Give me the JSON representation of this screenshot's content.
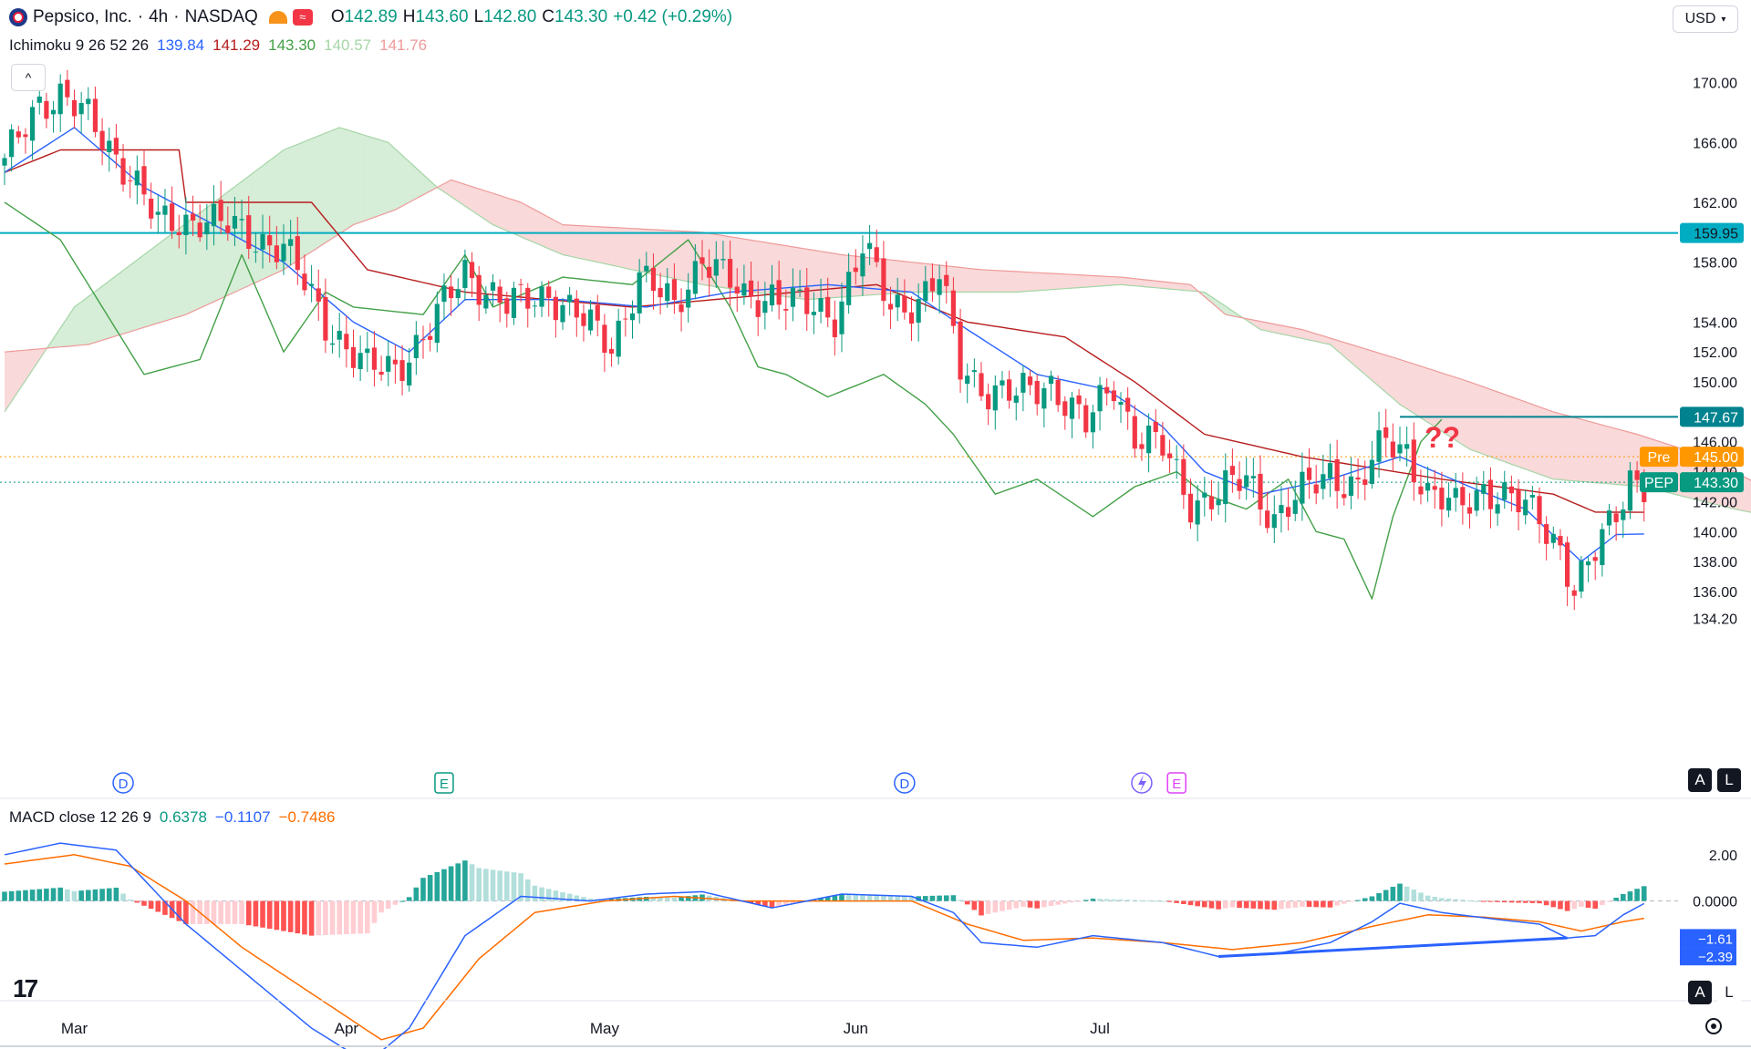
{
  "header": {
    "symbol": "Pepsico, Inc.",
    "interval": "4h",
    "exchange": "NASDAQ",
    "open_label": "O",
    "open": "142.89",
    "high_label": "H",
    "high": "143.60",
    "low_label": "L",
    "low": "142.80",
    "close_label": "C",
    "close": "143.30",
    "change": "+0.42 (+0.29%)",
    "currency": "USD"
  },
  "ichimoku": {
    "label": "Ichimoku 9 26 52 26",
    "values": [
      "139.84",
      "141.29",
      "143.30",
      "140.57",
      "141.76"
    ]
  },
  "macd": {
    "label": "MACD close 12 26 9",
    "values": [
      "0.6378",
      "−0.1107",
      "−0.7486"
    ],
    "axis_ticks": [
      "2.00",
      "0.0000"
    ],
    "tags": [
      "−1.61",
      "−2.39"
    ]
  },
  "annotation": "??",
  "price_axis": {
    "ticks": [
      "170.00",
      "166.00",
      "162.00",
      "158.00",
      "154.00",
      "152.00",
      "150.00",
      "146.00",
      "144.00",
      "142.00",
      "140.00",
      "138.00",
      "136.00",
      "134.20"
    ],
    "tags": {
      "resistance": "159.95",
      "level": "147.67",
      "pre_label": "Pre",
      "pre_value": "145.00",
      "ticker_label": "PEP",
      "last_value": "143.30"
    }
  },
  "time_axis": {
    "labels": [
      "Mar",
      "Apr",
      "May",
      "Jun",
      "Jul"
    ]
  },
  "event_markers": [
    "D",
    "E",
    "D",
    "E"
  ],
  "scale_buttons": [
    "A",
    "L"
  ],
  "colors": {
    "up": "#089981",
    "down": "#f23645",
    "tenkan": "#2962ff",
    "kijun": "#b71c1c",
    "lagging": "#43a047",
    "cloud_bull": "#a5d6a7",
    "cloud_bear": "#ef9a9a",
    "macd_line": "#2962ff",
    "signal_line": "#ff6d00",
    "hline": "#00acc1"
  },
  "chart_data": {
    "type": "candlestick",
    "title": "Pepsico, Inc. · 4h · NASDAQ",
    "x_range": [
      "Feb 24",
      "Jul 3"
    ],
    "ylim": [
      133.5,
      171.5
    ],
    "horizontal_lines": [
      {
        "value": 159.95,
        "color": "#00acc1"
      },
      {
        "value": 147.67,
        "color": "#00838f",
        "starts_at": "mid-Jun"
      },
      {
        "value": 145.0,
        "color": "#ff9800",
        "style": "dotted"
      },
      {
        "value": 143.3,
        "color": "#089981",
        "style": "dotted"
      }
    ],
    "waypoints_close": [
      {
        "x": 0,
        "v": 164.5
      },
      {
        "x": 5,
        "v": 168.8
      },
      {
        "x": 8,
        "v": 169.2
      },
      {
        "x": 12,
        "v": 167.5
      },
      {
        "x": 18,
        "v": 164.0
      },
      {
        "x": 22,
        "v": 160.5
      },
      {
        "x": 28,
        "v": 161.0
      },
      {
        "x": 34,
        "v": 160.0
      },
      {
        "x": 40,
        "v": 159.0
      },
      {
        "x": 46,
        "v": 154.0
      },
      {
        "x": 52,
        "v": 150.8
      },
      {
        "x": 56,
        "v": 151.0
      },
      {
        "x": 61,
        "v": 153.5
      },
      {
        "x": 66,
        "v": 157.5
      },
      {
        "x": 72,
        "v": 155.0
      },
      {
        "x": 78,
        "v": 156.0
      },
      {
        "x": 83,
        "v": 154.0
      },
      {
        "x": 87,
        "v": 152.5
      },
      {
        "x": 91,
        "v": 157.0
      },
      {
        "x": 96,
        "v": 155.0
      },
      {
        "x": 100,
        "v": 158.5
      },
      {
        "x": 106,
        "v": 155.5
      },
      {
        "x": 110,
        "v": 156.0
      },
      {
        "x": 114,
        "v": 155.0
      },
      {
        "x": 119,
        "v": 154.5
      },
      {
        "x": 123,
        "v": 159.0
      },
      {
        "x": 127,
        "v": 155.0
      },
      {
        "x": 131,
        "v": 155.5
      },
      {
        "x": 134,
        "v": 157.0
      },
      {
        "x": 137,
        "v": 151.0
      },
      {
        "x": 141,
        "v": 149.5
      },
      {
        "x": 145,
        "v": 149.0
      },
      {
        "x": 150,
        "v": 150.0
      },
      {
        "x": 155,
        "v": 147.0
      },
      {
        "x": 159,
        "v": 150.0
      },
      {
        "x": 162,
        "v": 146.5
      },
      {
        "x": 166,
        "v": 145.5
      },
      {
        "x": 170,
        "v": 142.0
      },
      {
        "x": 174,
        "v": 142.5
      },
      {
        "x": 178,
        "v": 143.5
      },
      {
        "x": 182,
        "v": 141.0
      },
      {
        "x": 186,
        "v": 142.5
      },
      {
        "x": 190,
        "v": 144.0
      },
      {
        "x": 194,
        "v": 143.0
      },
      {
        "x": 198,
        "v": 146.0
      },
      {
        "x": 201,
        "v": 145.5
      },
      {
        "x": 204,
        "v": 142.5
      },
      {
        "x": 208,
        "v": 141.5
      },
      {
        "x": 212,
        "v": 143.0
      },
      {
        "x": 216,
        "v": 142.0
      },
      {
        "x": 220,
        "v": 141.0
      },
      {
        "x": 223,
        "v": 139.0
      },
      {
        "x": 225,
        "v": 136.0
      },
      {
        "x": 227,
        "v": 137.5
      },
      {
        "x": 229,
        "v": 139.5
      },
      {
        "x": 231,
        "v": 141.5
      },
      {
        "x": 233,
        "v": 143.8
      },
      {
        "x": 235,
        "v": 143.0
      }
    ],
    "tenkan": [
      {
        "x": 0,
        "v": 164
      },
      {
        "x": 10,
        "v": 167
      },
      {
        "x": 20,
        "v": 163
      },
      {
        "x": 30,
        "v": 160.5
      },
      {
        "x": 40,
        "v": 158
      },
      {
        "x": 50,
        "v": 154
      },
      {
        "x": 58,
        "v": 152
      },
      {
        "x": 66,
        "v": 155.5
      },
      {
        "x": 80,
        "v": 155.5
      },
      {
        "x": 92,
        "v": 155
      },
      {
        "x": 104,
        "v": 156
      },
      {
        "x": 118,
        "v": 156.5
      },
      {
        "x": 130,
        "v": 156
      },
      {
        "x": 138,
        "v": 153.5
      },
      {
        "x": 148,
        "v": 150.5
      },
      {
        "x": 158,
        "v": 149.5
      },
      {
        "x": 166,
        "v": 147
      },
      {
        "x": 172,
        "v": 144
      },
      {
        "x": 180,
        "v": 142.5
      },
      {
        "x": 190,
        "v": 143.5
      },
      {
        "x": 200,
        "v": 145
      },
      {
        "x": 210,
        "v": 143
      },
      {
        "x": 218,
        "v": 141.5
      },
      {
        "x": 226,
        "v": 138
      },
      {
        "x": 231,
        "v": 139.8
      },
      {
        "x": 235,
        "v": 139.84
      }
    ],
    "kijun": [
      {
        "x": 0,
        "v": 164
      },
      {
        "x": 8,
        "v": 165.5
      },
      {
        "x": 25,
        "v": 165.5
      },
      {
        "x": 26,
        "v": 162
      },
      {
        "x": 44,
        "v": 162
      },
      {
        "x": 52,
        "v": 157.5
      },
      {
        "x": 66,
        "v": 156
      },
      {
        "x": 90,
        "v": 155
      },
      {
        "x": 125,
        "v": 156.5
      },
      {
        "x": 138,
        "v": 154
      },
      {
        "x": 152,
        "v": 153
      },
      {
        "x": 162,
        "v": 150
      },
      {
        "x": 172,
        "v": 146.5
      },
      {
        "x": 186,
        "v": 145
      },
      {
        "x": 206,
        "v": 143.5
      },
      {
        "x": 222,
        "v": 142.5
      },
      {
        "x": 228,
        "v": 141.3
      },
      {
        "x": 235,
        "v": 141.29
      }
    ],
    "chikou": [
      {
        "x": 0,
        "v": 162
      },
      {
        "x": 8,
        "v": 159.5
      },
      {
        "x": 14,
        "v": 155
      },
      {
        "x": 20,
        "v": 150.5
      },
      {
        "x": 28,
        "v": 151.5
      },
      {
        "x": 34,
        "v": 158.5
      },
      {
        "x": 40,
        "v": 152
      },
      {
        "x": 46,
        "v": 156
      },
      {
        "x": 50,
        "v": 155
      },
      {
        "x": 60,
        "v": 154.5
      },
      {
        "x": 66,
        "v": 158.5
      },
      {
        "x": 70,
        "v": 155
      },
      {
        "x": 80,
        "v": 157
      },
      {
        "x": 90,
        "v": 156.5
      },
      {
        "x": 98,
        "v": 159.5
      },
      {
        "x": 104,
        "v": 155
      },
      {
        "x": 108,
        "v": 151
      },
      {
        "x": 112,
        "v": 150.5
      },
      {
        "x": 118,
        "v": 149
      },
      {
        "x": 126,
        "v": 150.5
      },
      {
        "x": 132,
        "v": 148.5
      },
      {
        "x": 136,
        "v": 146.5
      },
      {
        "x": 142,
        "v": 142.5
      },
      {
        "x": 148,
        "v": 143.5
      },
      {
        "x": 156,
        "v": 141
      },
      {
        "x": 162,
        "v": 143
      },
      {
        "x": 168,
        "v": 144
      },
      {
        "x": 172,
        "v": 142.5
      },
      {
        "x": 178,
        "v": 141.5
      },
      {
        "x": 184,
        "v": 143.5
      },
      {
        "x": 188,
        "v": 140
      },
      {
        "x": 192,
        "v": 139.5
      },
      {
        "x": 196,
        "v": 135.5
      },
      {
        "x": 199,
        "v": 141
      },
      {
        "x": 203,
        "v": 146
      },
      {
        "x": 206,
        "v": 147.5
      }
    ],
    "senkou_a": [
      {
        "x": 0,
        "v": 148
      },
      {
        "x": 10,
        "v": 155
      },
      {
        "x": 20,
        "v": 158.5
      },
      {
        "x": 30,
        "v": 162
      },
      {
        "x": 40,
        "v": 165.5
      },
      {
        "x": 48,
        "v": 167
      },
      {
        "x": 55,
        "v": 166
      },
      {
        "x": 62,
        "v": 163
      },
      {
        "x": 70,
        "v": 160.5
      },
      {
        "x": 80,
        "v": 158.5
      },
      {
        "x": 90,
        "v": 157.5
      },
      {
        "x": 100,
        "v": 156.5
      },
      {
        "x": 115,
        "v": 155.5
      },
      {
        "x": 130,
        "v": 156
      },
      {
        "x": 145,
        "v": 156
      },
      {
        "x": 160,
        "v": 156.5
      },
      {
        "x": 172,
        "v": 156
      },
      {
        "x": 180,
        "v": 153.5
      },
      {
        "x": 190,
        "v": 152.5
      },
      {
        "x": 200,
        "v": 148.5
      },
      {
        "x": 210,
        "v": 145.5
      },
      {
        "x": 222,
        "v": 143.5
      },
      {
        "x": 235,
        "v": 143
      },
      {
        "x": 248,
        "v": 141.5
      },
      {
        "x": 258,
        "v": 140.57
      },
      {
        "x": 265,
        "v": 140.8
      }
    ],
    "senkou_b": [
      {
        "x": 0,
        "v": 152
      },
      {
        "x": 12,
        "v": 152.5
      },
      {
        "x": 26,
        "v": 154.5
      },
      {
        "x": 40,
        "v": 157.5
      },
      {
        "x": 50,
        "v": 160.5
      },
      {
        "x": 56,
        "v": 161.5
      },
      {
        "x": 64,
        "v": 163.5
      },
      {
        "x": 74,
        "v": 162
      },
      {
        "x": 80,
        "v": 160.5
      },
      {
        "x": 100,
        "v": 160
      },
      {
        "x": 120,
        "v": 158.5
      },
      {
        "x": 140,
        "v": 157.5
      },
      {
        "x": 160,
        "v": 157
      },
      {
        "x": 170,
        "v": 156.5
      },
      {
        "x": 175,
        "v": 154.5
      },
      {
        "x": 186,
        "v": 153.5
      },
      {
        "x": 200,
        "v": 151.5
      },
      {
        "x": 210,
        "v": 150
      },
      {
        "x": 222,
        "v": 148
      },
      {
        "x": 234,
        "v": 146.5
      },
      {
        "x": 244,
        "v": 145
      },
      {
        "x": 252,
        "v": 143
      },
      {
        "x": 258,
        "v": 141.76
      },
      {
        "x": 265,
        "v": 141.8
      }
    ],
    "macd_line": [
      {
        "x": 0,
        "v": 2.0
      },
      {
        "x": 8,
        "v": 2.5
      },
      {
        "x": 16,
        "v": 2.2
      },
      {
        "x": 26,
        "v": -1.0
      },
      {
        "x": 34,
        "v": -3.0
      },
      {
        "x": 44,
        "v": -5.5
      },
      {
        "x": 52,
        "v": -7.0
      },
      {
        "x": 58,
        "v": -5.5
      },
      {
        "x": 66,
        "v": -1.5
      },
      {
        "x": 74,
        "v": 0.2
      },
      {
        "x": 84,
        "v": 0.0
      },
      {
        "x": 92,
        "v": 0.3
      },
      {
        "x": 100,
        "v": 0.4
      },
      {
        "x": 110,
        "v": -0.3
      },
      {
        "x": 120,
        "v": 0.3
      },
      {
        "x": 130,
        "v": 0.2
      },
      {
        "x": 136,
        "v": -0.5
      },
      {
        "x": 140,
        "v": -1.8
      },
      {
        "x": 148,
        "v": -2.0
      },
      {
        "x": 156,
        "v": -1.5
      },
      {
        "x": 166,
        "v": -1.8
      },
      {
        "x": 174,
        "v": -2.4
      },
      {
        "x": 182,
        "v": -2.3
      },
      {
        "x": 190,
        "v": -1.8
      },
      {
        "x": 196,
        "v": -0.9
      },
      {
        "x": 200,
        "v": -0.1
      },
      {
        "x": 206,
        "v": -0.5
      },
      {
        "x": 214,
        "v": -0.8
      },
      {
        "x": 220,
        "v": -1.0
      },
      {
        "x": 224,
        "v": -1.6
      },
      {
        "x": 228,
        "v": -1.5
      },
      {
        "x": 232,
        "v": -0.6
      },
      {
        "x": 235,
        "v": -0.11
      }
    ],
    "signal_line": [
      {
        "x": 0,
        "v": 1.6
      },
      {
        "x": 10,
        "v": 2.0
      },
      {
        "x": 18,
        "v": 1.5
      },
      {
        "x": 26,
        "v": 0.0
      },
      {
        "x": 34,
        "v": -2.0
      },
      {
        "x": 44,
        "v": -4.0
      },
      {
        "x": 54,
        "v": -6.0
      },
      {
        "x": 60,
        "v": -5.5
      },
      {
        "x": 68,
        "v": -2.5
      },
      {
        "x": 76,
        "v": -0.5
      },
      {
        "x": 86,
        "v": 0.0
      },
      {
        "x": 96,
        "v": 0.2
      },
      {
        "x": 106,
        "v": 0.0
      },
      {
        "x": 116,
        "v": 0.0
      },
      {
        "x": 130,
        "v": 0.0
      },
      {
        "x": 138,
        "v": -1.0
      },
      {
        "x": 146,
        "v": -1.7
      },
      {
        "x": 156,
        "v": -1.6
      },
      {
        "x": 166,
        "v": -1.8
      },
      {
        "x": 176,
        "v": -2.1
      },
      {
        "x": 186,
        "v": -1.8
      },
      {
        "x": 196,
        "v": -1.1
      },
      {
        "x": 204,
        "v": -0.6
      },
      {
        "x": 212,
        "v": -0.7
      },
      {
        "x": 220,
        "v": -0.9
      },
      {
        "x": 226,
        "v": -1.3
      },
      {
        "x": 232,
        "v": -0.9
      },
      {
        "x": 235,
        "v": -0.75
      }
    ],
    "macd_ylim": [
      -3.8,
      2.9
    ],
    "divergence_line": {
      "from": {
        "x": 174,
        "v": -2.4
      },
      "to": {
        "x": 224,
        "v": -1.6
      }
    }
  }
}
